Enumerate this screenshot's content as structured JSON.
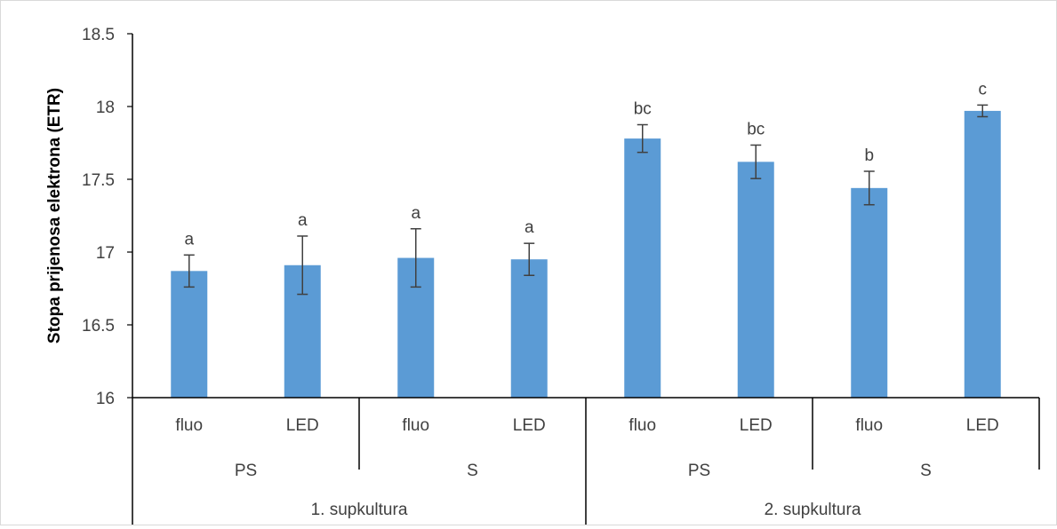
{
  "chart_data": {
    "type": "bar",
    "ylabel": "Stopa prijenosa elektrona (ETR)",
    "xlabel": "",
    "ylim": [
      16,
      18.5
    ],
    "yticks": [
      "16",
      "16.5",
      "17",
      "17.5",
      "18",
      "18.5"
    ],
    "grid": false,
    "bar_color": "#5b9bd5",
    "error_color": "#404040",
    "categories": [
      {
        "light": "fluo",
        "group": "PS",
        "culture": "1. supkultura"
      },
      {
        "light": "LED",
        "group": "PS",
        "culture": "1. supkultura"
      },
      {
        "light": "fluo",
        "group": "S",
        "culture": "1. supkultura"
      },
      {
        "light": "LED",
        "group": "S",
        "culture": "1. supkultura"
      },
      {
        "light": "fluo",
        "group": "PS",
        "culture": "2. supkultura"
      },
      {
        "light": "LED",
        "group": "PS",
        "culture": "2. supkultura"
      },
      {
        "light": "fluo",
        "group": "S",
        "culture": "2. supkultura"
      },
      {
        "light": "LED",
        "group": "S",
        "culture": "2. supkultura"
      }
    ],
    "values": [
      16.87,
      16.91,
      16.96,
      16.95,
      17.78,
      17.62,
      17.44,
      17.97
    ],
    "errors": [
      0.11,
      0.2,
      0.2,
      0.11,
      0.095,
      0.115,
      0.115,
      0.04
    ],
    "annotations": [
      "a",
      "a",
      "a",
      "a",
      "bc",
      "bc",
      "b",
      "c"
    ],
    "group_labels": [
      "PS",
      "S",
      "PS",
      "S"
    ],
    "culture_labels": [
      "1. supkultura",
      "2. supkultura"
    ]
  }
}
